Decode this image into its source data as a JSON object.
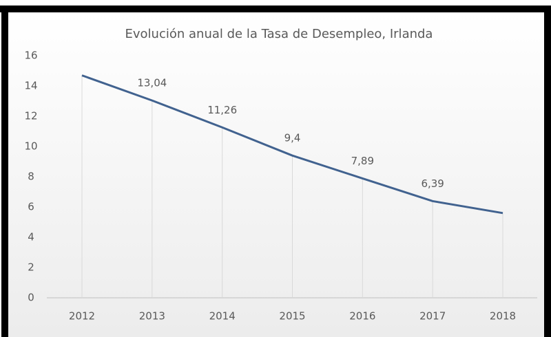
{
  "chart_data": {
    "type": "line",
    "title": "Evolución anual de la Tasa de Desempleo, Irlanda",
    "categories": [
      "2012",
      "2013",
      "2014",
      "2015",
      "2016",
      "2017",
      "2018"
    ],
    "series": [
      {
        "name": "Tasa de Desempleo",
        "color": "#41628f",
        "values": [
          14.7,
          13.04,
          11.26,
          9.4,
          7.89,
          6.39,
          5.6
        ],
        "value_labels": [
          null,
          "13,04",
          "11,26",
          "9,4",
          "7,89",
          "6,39",
          null
        ]
      }
    ],
    "ylim": [
      0,
      16
    ],
    "yticks": [
      0,
      2,
      4,
      6,
      8,
      10,
      12,
      14,
      16
    ],
    "grid": false
  }
}
